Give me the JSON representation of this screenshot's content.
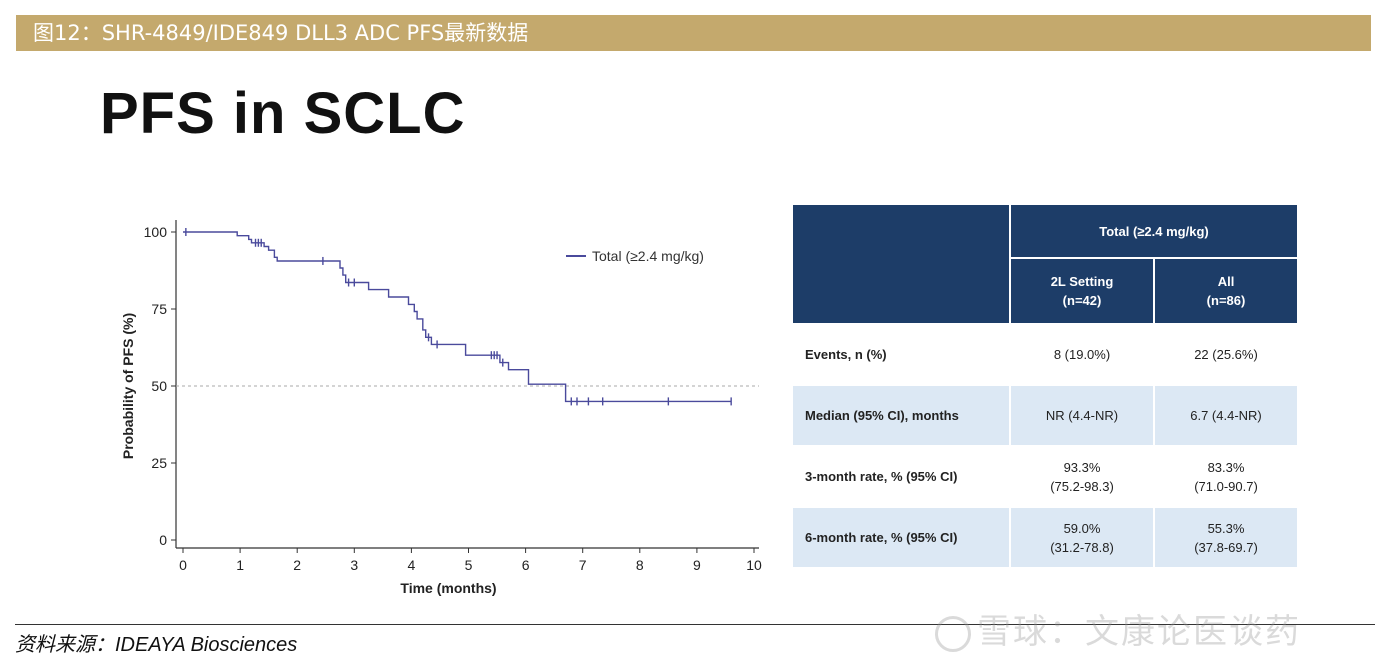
{
  "banner": {
    "title": "图12：SHR-4849/IDE849 DLL3 ADC PFS最新数据"
  },
  "headline": "PFS in SCLC",
  "chart_data": {
    "type": "line",
    "subtype": "kaplan-meier",
    "xlabel": "Time (months)",
    "ylabel": "Probability of PFS (%)",
    "xlim": [
      0,
      10
    ],
    "ylim": [
      0,
      100
    ],
    "xticks": [
      0,
      1,
      2,
      3,
      4,
      5,
      6,
      7,
      8,
      9,
      10
    ],
    "yticks": [
      0,
      25,
      50,
      75,
      100
    ],
    "reference_line_y": 50,
    "legend_position": "top-right",
    "series": [
      {
        "name": "Total (≥2.4 mg/kg)",
        "color": "#4a4a9c",
        "steps": [
          [
            0,
            100
          ],
          [
            0.95,
            100
          ],
          [
            0.95,
            98.8
          ],
          [
            1.15,
            98.8
          ],
          [
            1.15,
            97.6
          ],
          [
            1.2,
            97.6
          ],
          [
            1.2,
            96.5
          ],
          [
            1.42,
            96.5
          ],
          [
            1.42,
            95.3
          ],
          [
            1.5,
            95.3
          ],
          [
            1.5,
            94.1
          ],
          [
            1.6,
            94.1
          ],
          [
            1.6,
            91.8
          ],
          [
            1.65,
            91.8
          ],
          [
            1.65,
            90.6
          ],
          [
            2.75,
            90.6
          ],
          [
            2.75,
            88.3
          ],
          [
            2.8,
            88.3
          ],
          [
            2.8,
            86.0
          ],
          [
            2.85,
            86.0
          ],
          [
            2.85,
            83.6
          ],
          [
            3.25,
            83.6
          ],
          [
            3.25,
            81.3
          ],
          [
            3.6,
            81.3
          ],
          [
            3.6,
            78.9
          ],
          [
            3.95,
            78.9
          ],
          [
            3.95,
            76.5
          ],
          [
            4.05,
            76.5
          ],
          [
            4.05,
            74.2
          ],
          [
            4.1,
            74.2
          ],
          [
            4.1,
            71.8
          ],
          [
            4.2,
            71.8
          ],
          [
            4.2,
            68.2
          ],
          [
            4.25,
            68.2
          ],
          [
            4.25,
            65.8
          ],
          [
            4.35,
            65.8
          ],
          [
            4.35,
            63.5
          ],
          [
            4.95,
            63.5
          ],
          [
            4.95,
            60.0
          ],
          [
            5.55,
            60.0
          ],
          [
            5.55,
            57.6
          ],
          [
            5.7,
            57.6
          ],
          [
            5.7,
            55.3
          ],
          [
            6.05,
            55.3
          ],
          [
            6.05,
            50.6
          ],
          [
            6.7,
            50.6
          ],
          [
            6.7,
            45.0
          ],
          [
            9.6,
            45.0
          ]
        ],
        "censors": [
          [
            0.05,
            100
          ],
          [
            1.27,
            96.5
          ],
          [
            1.32,
            96.5
          ],
          [
            1.37,
            96.5
          ],
          [
            2.45,
            90.6
          ],
          [
            2.9,
            83.6
          ],
          [
            3.0,
            83.6
          ],
          [
            4.3,
            65.8
          ],
          [
            4.45,
            63.5
          ],
          [
            5.4,
            60.0
          ],
          [
            5.45,
            60.0
          ],
          [
            5.5,
            60.0
          ],
          [
            5.6,
            57.6
          ],
          [
            6.8,
            45.0
          ],
          [
            6.9,
            45.0
          ],
          [
            7.1,
            45.0
          ],
          [
            7.35,
            45.0
          ],
          [
            8.5,
            45.0
          ],
          [
            9.6,
            45.0
          ]
        ]
      }
    ]
  },
  "table": {
    "group_header": "Total (≥2.4 mg/kg)",
    "columns": [
      {
        "line1": "2L Setting",
        "line2": "(n=42)"
      },
      {
        "line1": "All",
        "line2": "(n=86)"
      }
    ],
    "rows": [
      {
        "label": "Events, n (%)",
        "c1": {
          "line1": "8 (19.0%)",
          "line2": ""
        },
        "c2": {
          "line1": "22 (25.6%)",
          "line2": ""
        }
      },
      {
        "label": "Median (95% CI), months",
        "c1": {
          "line1": "NR (4.4-NR)",
          "line2": ""
        },
        "c2": {
          "line1": "6.7 (4.4-NR)",
          "line2": ""
        }
      },
      {
        "label": "3-month rate, % (95% CI)",
        "c1": {
          "line1": "93.3%",
          "line2": "(75.2-98.3)"
        },
        "c2": {
          "line1": "83.3%",
          "line2": "(71.0-90.7)"
        }
      },
      {
        "label": "6-month rate, % (95% CI)",
        "c1": {
          "line1": "59.0%",
          "line2": "(31.2-78.8)"
        },
        "c2": {
          "line1": "55.3%",
          "line2": "(37.8-69.7)"
        }
      }
    ]
  },
  "source": "资料来源：IDEAYA Biosciences",
  "watermark": "雪球：文康论医谈药"
}
